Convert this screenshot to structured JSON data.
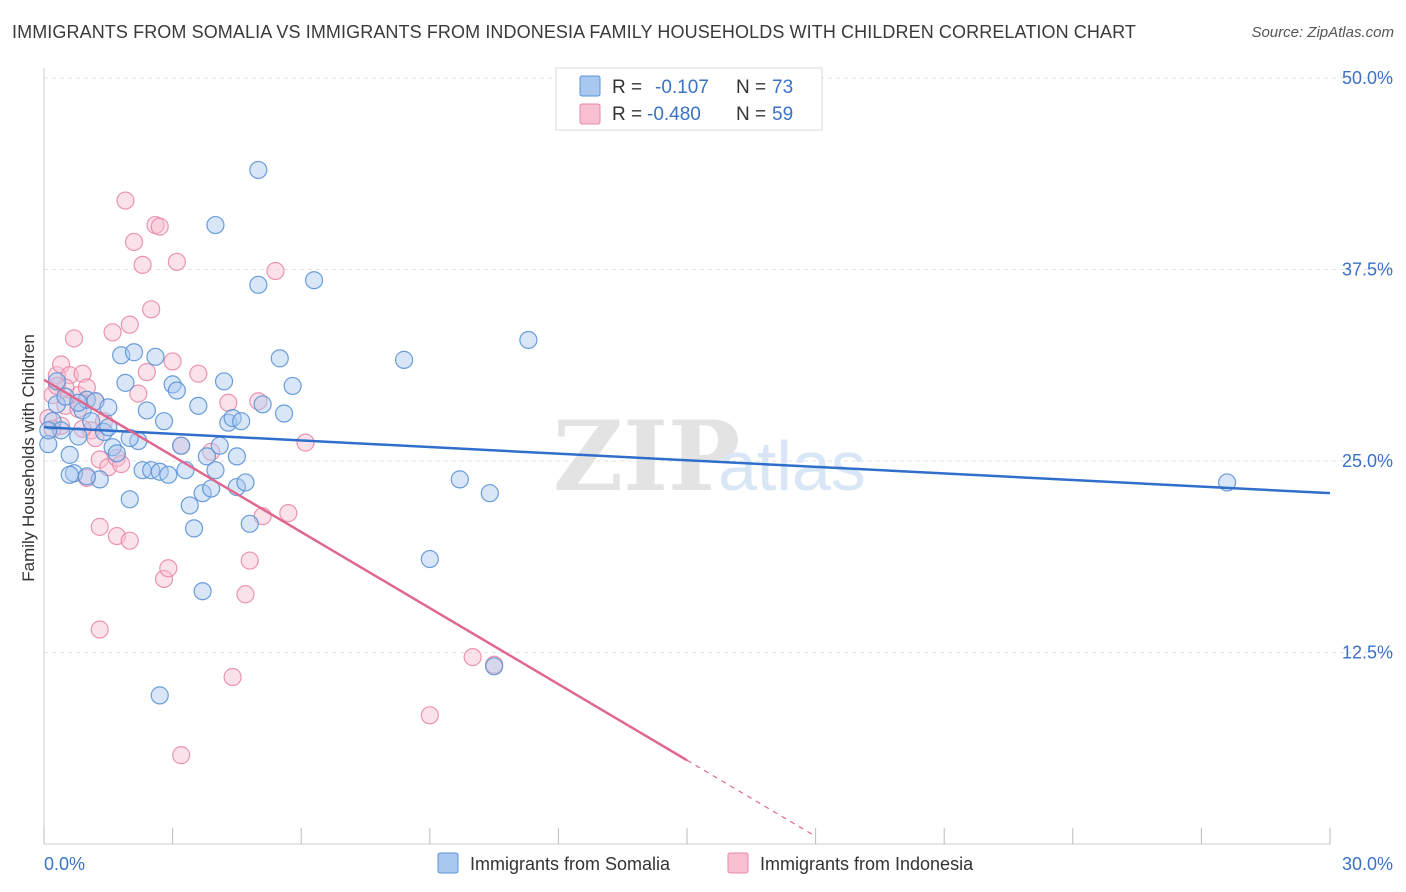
{
  "title": "IMMIGRANTS FROM SOMALIA VS IMMIGRANTS FROM INDONESIA FAMILY HOUSEHOLDS WITH CHILDREN CORRELATION CHART",
  "source": "Source: ZipAtlas.com",
  "watermark": {
    "zip": "ZIP",
    "atlas": "atlas"
  },
  "colors": {
    "somalia_fill": "#a9c8f0",
    "somalia_stroke": "#5b93d6",
    "somalia_line": "#2f6fcb",
    "indonesia_fill": "#f7bfd0",
    "indonesia_stroke": "#e98aa8",
    "indonesia_line": "#e0688f",
    "grid": "#e2e2e2",
    "axis_text": "#3a72c4"
  },
  "legend": {
    "rows": [
      {
        "r_label": "R =",
        "r_value": "-0.107",
        "n_label": "N =",
        "n_value": "73"
      },
      {
        "r_label": "R =",
        "r_value": "-0.480",
        "n_label": "N =",
        "n_value": "59"
      }
    ]
  },
  "chart_data": {
    "type": "scatter",
    "title": "IMMIGRANTS FROM SOMALIA VS IMMIGRANTS FROM INDONESIA FAMILY HOUSEHOLDS WITH CHILDREN CORRELATION CHART",
    "xlabel": "",
    "ylabel": "Family Households with Children",
    "xlim": [
      0,
      30
    ],
    "ylim": [
      0,
      50
    ],
    "x_tick_labels": [
      "0.0%",
      "30.0%"
    ],
    "y_ticks": [
      12.5,
      25.0,
      37.5,
      50.0
    ],
    "y_tick_labels": [
      "12.5%",
      "25.0%",
      "37.5%",
      "50.0%"
    ],
    "grid": true,
    "series": [
      {
        "name": "Immigrants from Somalia",
        "trend": {
          "x": [
            0,
            30
          ],
          "y": [
            27.2,
            22.9
          ],
          "dashed_from": null
        },
        "points": [
          [
            0.1,
            26.1
          ],
          [
            0.2,
            27.6
          ],
          [
            0.3,
            28.7
          ],
          [
            0.4,
            27.0
          ],
          [
            0.5,
            29.2
          ],
          [
            0.6,
            25.4
          ],
          [
            0.7,
            24.2
          ],
          [
            0.8,
            26.6
          ],
          [
            0.9,
            28.3
          ],
          [
            1.0,
            29.0
          ],
          [
            1.1,
            27.6
          ],
          [
            1.2,
            28.9
          ],
          [
            1.3,
            23.8
          ],
          [
            1.4,
            26.9
          ],
          [
            1.5,
            28.5
          ],
          [
            1.6,
            25.9
          ],
          [
            1.7,
            25.5
          ],
          [
            1.8,
            31.9
          ],
          [
            1.9,
            30.1
          ],
          [
            2.0,
            22.5
          ],
          [
            2.1,
            32.1
          ],
          [
            2.2,
            26.3
          ],
          [
            2.3,
            24.4
          ],
          [
            2.4,
            28.3
          ],
          [
            2.5,
            24.4
          ],
          [
            2.6,
            31.8
          ],
          [
            2.7,
            24.3
          ],
          [
            2.8,
            27.6
          ],
          [
            2.9,
            24.1
          ],
          [
            3.0,
            30.0
          ],
          [
            3.1,
            29.6
          ],
          [
            3.2,
            26.0
          ],
          [
            3.3,
            24.4
          ],
          [
            3.4,
            22.1
          ],
          [
            3.5,
            20.6
          ],
          [
            3.6,
            28.6
          ],
          [
            3.7,
            22.9
          ],
          [
            3.8,
            25.3
          ],
          [
            3.9,
            23.2
          ],
          [
            4.0,
            24.4
          ],
          [
            4.1,
            26.0
          ],
          [
            4.2,
            30.2
          ],
          [
            4.3,
            27.5
          ],
          [
            4.4,
            27.8
          ],
          [
            4.5,
            23.3
          ],
          [
            4.6,
            27.6
          ],
          [
            4.7,
            23.6
          ],
          [
            4.8,
            20.9
          ],
          [
            5.0,
            44.0
          ],
          [
            5.0,
            36.5
          ],
          [
            5.1,
            28.7
          ],
          [
            5.5,
            31.7
          ],
          [
            5.6,
            28.1
          ],
          [
            5.8,
            29.9
          ],
          [
            6.3,
            36.8
          ],
          [
            8.4,
            31.6
          ],
          [
            9.0,
            18.6
          ],
          [
            9.7,
            23.8
          ],
          [
            10.4,
            22.9
          ],
          [
            10.5,
            11.6
          ],
          [
            11.3,
            32.9
          ],
          [
            27.6,
            23.6
          ],
          [
            4.0,
            40.4
          ],
          [
            3.7,
            16.5
          ],
          [
            2.7,
            9.7
          ],
          [
            0.3,
            30.2
          ],
          [
            1.0,
            24.0
          ],
          [
            0.6,
            24.1
          ],
          [
            0.8,
            28.8
          ],
          [
            1.5,
            27.2
          ],
          [
            2.0,
            26.5
          ],
          [
            4.5,
            25.3
          ],
          [
            0.1,
            27.0
          ]
        ]
      },
      {
        "name": "Immigrants from Indonesia",
        "trend": {
          "x": [
            0,
            18.0
          ],
          "y": [
            30.3,
            0.5
          ],
          "dashed_from": 15.0
        },
        "points": [
          [
            0.1,
            27.8
          ],
          [
            0.2,
            29.3
          ],
          [
            0.3,
            30.6
          ],
          [
            0.4,
            31.3
          ],
          [
            0.5,
            28.6
          ],
          [
            0.6,
            30.6
          ],
          [
            0.7,
            33.0
          ],
          [
            0.8,
            29.3
          ],
          [
            0.9,
            30.7
          ],
          [
            1.0,
            29.8
          ],
          [
            1.1,
            27.0
          ],
          [
            1.2,
            26.5
          ],
          [
            1.3,
            25.1
          ],
          [
            1.4,
            27.6
          ],
          [
            1.5,
            24.6
          ],
          [
            1.6,
            33.4
          ],
          [
            1.7,
            25.2
          ],
          [
            1.8,
            24.8
          ],
          [
            1.9,
            42.0
          ],
          [
            2.0,
            33.9
          ],
          [
            2.1,
            39.3
          ],
          [
            2.2,
            29.4
          ],
          [
            2.3,
            37.8
          ],
          [
            2.4,
            30.8
          ],
          [
            2.5,
            34.9
          ],
          [
            2.6,
            40.4
          ],
          [
            2.7,
            40.3
          ],
          [
            2.8,
            17.3
          ],
          [
            2.9,
            18.0
          ],
          [
            3.0,
            31.5
          ],
          [
            3.1,
            38.0
          ],
          [
            3.2,
            26.0
          ],
          [
            3.6,
            30.7
          ],
          [
            3.9,
            25.6
          ],
          [
            4.3,
            28.8
          ],
          [
            4.7,
            16.3
          ],
          [
            4.8,
            18.5
          ],
          [
            5.0,
            28.9
          ],
          [
            5.1,
            21.4
          ],
          [
            5.4,
            37.4
          ],
          [
            5.7,
            21.6
          ],
          [
            6.1,
            26.2
          ],
          [
            1.3,
            14.0
          ],
          [
            1.3,
            20.7
          ],
          [
            1.7,
            20.1
          ],
          [
            2.0,
            19.8
          ],
          [
            4.4,
            10.9
          ],
          [
            9.0,
            8.4
          ],
          [
            10.0,
            12.2
          ],
          [
            10.5,
            11.7
          ],
          [
            3.2,
            5.8
          ],
          [
            0.9,
            27.1
          ],
          [
            0.5,
            29.8
          ],
          [
            1.2,
            28.9
          ],
          [
            0.3,
            29.9
          ],
          [
            0.8,
            28.4
          ],
          [
            1.0,
            23.9
          ],
          [
            0.4,
            27.3
          ],
          [
            0.2,
            27.1
          ]
        ]
      }
    ]
  },
  "bottom_legend": [
    "Immigrants from Somalia",
    "Immigrants from Indonesia"
  ]
}
